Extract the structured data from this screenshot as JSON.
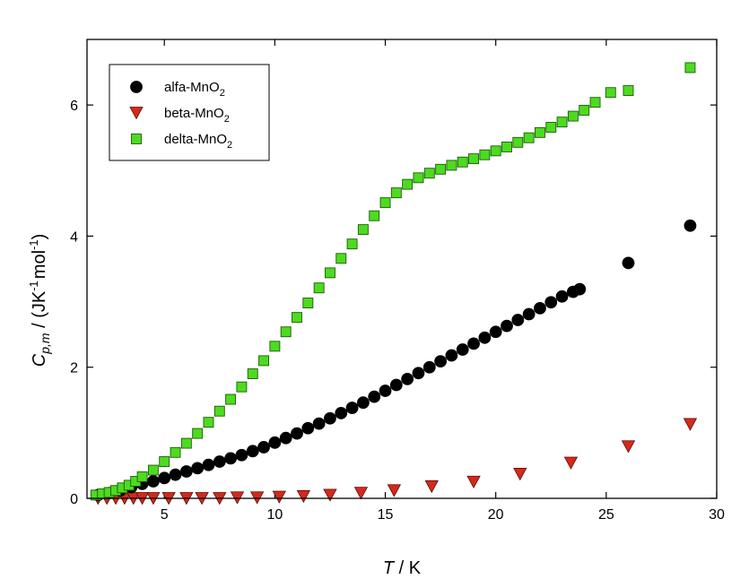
{
  "chart_data": {
    "type": "scatter",
    "title": "",
    "xlabel": "T / K",
    "ylabel": "C_p,m / (JK^-1 mol^-1)",
    "xlim": [
      1.5,
      30
    ],
    "ylim": [
      0,
      7
    ],
    "x_ticks": [
      5,
      10,
      15,
      20,
      25,
      30
    ],
    "y_ticks": [
      0,
      2,
      4,
      6
    ],
    "grid": false,
    "legend_position": "top-left",
    "x_label_parts": {
      "var": "T",
      "rest": " / K"
    },
    "y_label_parts": {
      "var": "C",
      "sub": "p,m",
      "mid": " / (JK",
      "sup1": "-1",
      "mol": "mol",
      "sup2": "-1",
      "end": ")"
    },
    "series": [
      {
        "name": "alfa-MnO2",
        "label_main": "alfa-MnO",
        "label_sub": "2",
        "marker": "circle",
        "color": "#000000",
        "points": [
          [
            2.0,
            0.05
          ],
          [
            2.5,
            0.08
          ],
          [
            3.0,
            0.12
          ],
          [
            3.5,
            0.17
          ],
          [
            4.0,
            0.22
          ],
          [
            4.5,
            0.26
          ],
          [
            5.0,
            0.31
          ],
          [
            5.5,
            0.36
          ],
          [
            6.0,
            0.41
          ],
          [
            6.5,
            0.46
          ],
          [
            7.0,
            0.51
          ],
          [
            7.5,
            0.56
          ],
          [
            8.0,
            0.61
          ],
          [
            8.5,
            0.66
          ],
          [
            9.0,
            0.72
          ],
          [
            9.5,
            0.78
          ],
          [
            10.0,
            0.85
          ],
          [
            10.5,
            0.92
          ],
          [
            11.0,
            0.99
          ],
          [
            11.5,
            1.07
          ],
          [
            12.0,
            1.14
          ],
          [
            12.5,
            1.22
          ],
          [
            13.0,
            1.3
          ],
          [
            13.5,
            1.38
          ],
          [
            14.0,
            1.46
          ],
          [
            14.5,
            1.55
          ],
          [
            15.0,
            1.64
          ],
          [
            15.5,
            1.73
          ],
          [
            16.0,
            1.82
          ],
          [
            16.5,
            1.91
          ],
          [
            17.0,
            2.0
          ],
          [
            17.5,
            2.09
          ],
          [
            18.0,
            2.18
          ],
          [
            18.5,
            2.27
          ],
          [
            19.0,
            2.36
          ],
          [
            19.5,
            2.45
          ],
          [
            20.0,
            2.54
          ],
          [
            20.5,
            2.63
          ],
          [
            21.0,
            2.72
          ],
          [
            21.5,
            2.81
          ],
          [
            22.0,
            2.9
          ],
          [
            22.5,
            2.99
          ],
          [
            23.0,
            3.08
          ],
          [
            23.5,
            3.15
          ],
          [
            23.8,
            3.19
          ],
          [
            26.0,
            3.59
          ],
          [
            28.8,
            4.16
          ]
        ]
      },
      {
        "name": "beta-MnO2",
        "label_main": "beta-MnO",
        "label_sub": "2",
        "marker": "triangle-down",
        "color": "#d42a1c",
        "points": [
          [
            2.0,
            0.0
          ],
          [
            2.4,
            0.0
          ],
          [
            2.8,
            0.0
          ],
          [
            3.2,
            0.0
          ],
          [
            3.6,
            0.0
          ],
          [
            4.0,
            0.0
          ],
          [
            4.5,
            0.0
          ],
          [
            5.2,
            0.0
          ],
          [
            6.0,
            0.0
          ],
          [
            6.7,
            0.0
          ],
          [
            7.5,
            0.0
          ],
          [
            8.3,
            0.01
          ],
          [
            9.2,
            0.01
          ],
          [
            10.2,
            0.02
          ],
          [
            11.3,
            0.03
          ],
          [
            12.5,
            0.05
          ],
          [
            13.9,
            0.08
          ],
          [
            15.4,
            0.12
          ],
          [
            17.1,
            0.18
          ],
          [
            19.0,
            0.25
          ],
          [
            21.1,
            0.37
          ],
          [
            23.4,
            0.54
          ],
          [
            26.0,
            0.79
          ],
          [
            28.8,
            1.13
          ]
        ]
      },
      {
        "name": "delta-MnO2",
        "label_main": "delta-MnO",
        "label_sub": "2",
        "marker": "square",
        "color": "#4ddb1f",
        "points": [
          [
            1.9,
            0.05
          ],
          [
            2.2,
            0.07
          ],
          [
            2.5,
            0.09
          ],
          [
            2.8,
            0.12
          ],
          [
            3.1,
            0.16
          ],
          [
            3.4,
            0.2
          ],
          [
            3.7,
            0.26
          ],
          [
            4.0,
            0.33
          ],
          [
            4.5,
            0.43
          ],
          [
            5.0,
            0.56
          ],
          [
            5.5,
            0.7
          ],
          [
            6.0,
            0.84
          ],
          [
            6.5,
            0.99
          ],
          [
            7.0,
            1.16
          ],
          [
            7.5,
            1.33
          ],
          [
            8.0,
            1.51
          ],
          [
            8.5,
            1.7
          ],
          [
            9.0,
            1.9
          ],
          [
            9.5,
            2.1
          ],
          [
            10.0,
            2.32
          ],
          [
            10.5,
            2.54
          ],
          [
            11.0,
            2.76
          ],
          [
            11.5,
            2.98
          ],
          [
            12.0,
            3.21
          ],
          [
            12.5,
            3.44
          ],
          [
            13.0,
            3.66
          ],
          [
            13.5,
            3.88
          ],
          [
            14.0,
            4.1
          ],
          [
            14.5,
            4.31
          ],
          [
            15.0,
            4.51
          ],
          [
            15.5,
            4.66
          ],
          [
            16.0,
            4.79
          ],
          [
            16.5,
            4.89
          ],
          [
            17.0,
            4.96
          ],
          [
            17.5,
            5.02
          ],
          [
            18.0,
            5.08
          ],
          [
            18.5,
            5.13
          ],
          [
            19.0,
            5.18
          ],
          [
            19.5,
            5.24
          ],
          [
            20.0,
            5.3
          ],
          [
            20.5,
            5.36
          ],
          [
            21.0,
            5.43
          ],
          [
            21.5,
            5.5
          ],
          [
            22.0,
            5.58
          ],
          [
            22.5,
            5.66
          ],
          [
            23.0,
            5.74
          ],
          [
            23.5,
            5.83
          ],
          [
            24.0,
            5.92
          ],
          [
            24.5,
            6.04
          ],
          [
            25.2,
            6.19
          ],
          [
            26.0,
            6.22
          ],
          [
            28.8,
            6.57
          ]
        ]
      }
    ]
  }
}
